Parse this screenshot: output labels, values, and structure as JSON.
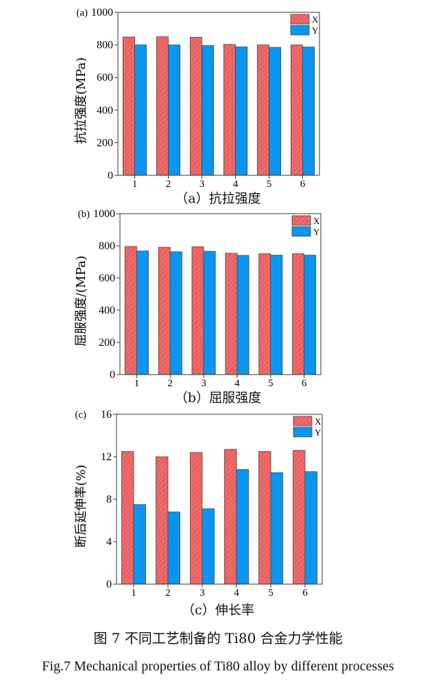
{
  "colors": {
    "X": "#f06a6a",
    "Y": "#0a96f0",
    "hatch": "#c84848"
  },
  "chart_data": [
    {
      "type": "bar",
      "panel_label": "(a)",
      "caption": "（a）抗拉强度",
      "ylabel": "抗拉强度(MPa)",
      "xlabel": "",
      "categories": [
        "1",
        "2",
        "3",
        "4",
        "5",
        "6"
      ],
      "ylim": [
        0,
        1000
      ],
      "yticks": [
        0,
        200,
        400,
        600,
        800,
        1000
      ],
      "legend_position": "top-right",
      "series": [
        {
          "name": "X",
          "values": [
            849,
            850,
            847,
            803,
            800,
            800
          ]
        },
        {
          "name": "Y",
          "values": [
            800,
            800,
            796,
            788,
            785,
            787
          ]
        }
      ]
    },
    {
      "type": "bar",
      "panel_label": "(b)",
      "caption": "（b）屈服强度",
      "ylabel": "屈服强度/(MPa)",
      "xlabel": "",
      "categories": [
        "1",
        "2",
        "3",
        "4",
        "5",
        "6"
      ],
      "ylim": [
        0,
        1000
      ],
      "yticks": [
        0,
        200,
        400,
        600,
        800,
        1000
      ],
      "legend_position": "top-right",
      "series": [
        {
          "name": "X",
          "values": [
            796,
            791,
            794,
            754,
            751,
            751
          ]
        },
        {
          "name": "Y",
          "values": [
            768,
            763,
            766,
            741,
            742,
            742
          ]
        }
      ]
    },
    {
      "type": "bar",
      "panel_label": "(c)",
      "caption": "（c）伸长率",
      "ylabel": "断后延伸率(%)",
      "xlabel": "",
      "categories": [
        "1",
        "2",
        "3",
        "4",
        "5",
        "6"
      ],
      "ylim": [
        0,
        16
      ],
      "yticks": [
        0,
        4,
        8,
        12,
        16
      ],
      "legend_position": "top-right",
      "series": [
        {
          "name": "X",
          "values": [
            12.5,
            12.0,
            12.4,
            12.7,
            12.5,
            12.6
          ]
        },
        {
          "name": "Y",
          "values": [
            7.5,
            6.8,
            7.1,
            10.8,
            10.5,
            10.6
          ]
        }
      ]
    }
  ],
  "figure": {
    "caption_cn": "图 7  不同工艺制备的 Ti80 合金力学性能",
    "caption_en": "Fig.7 Mechanical properties of Ti80 alloy by different processes"
  }
}
